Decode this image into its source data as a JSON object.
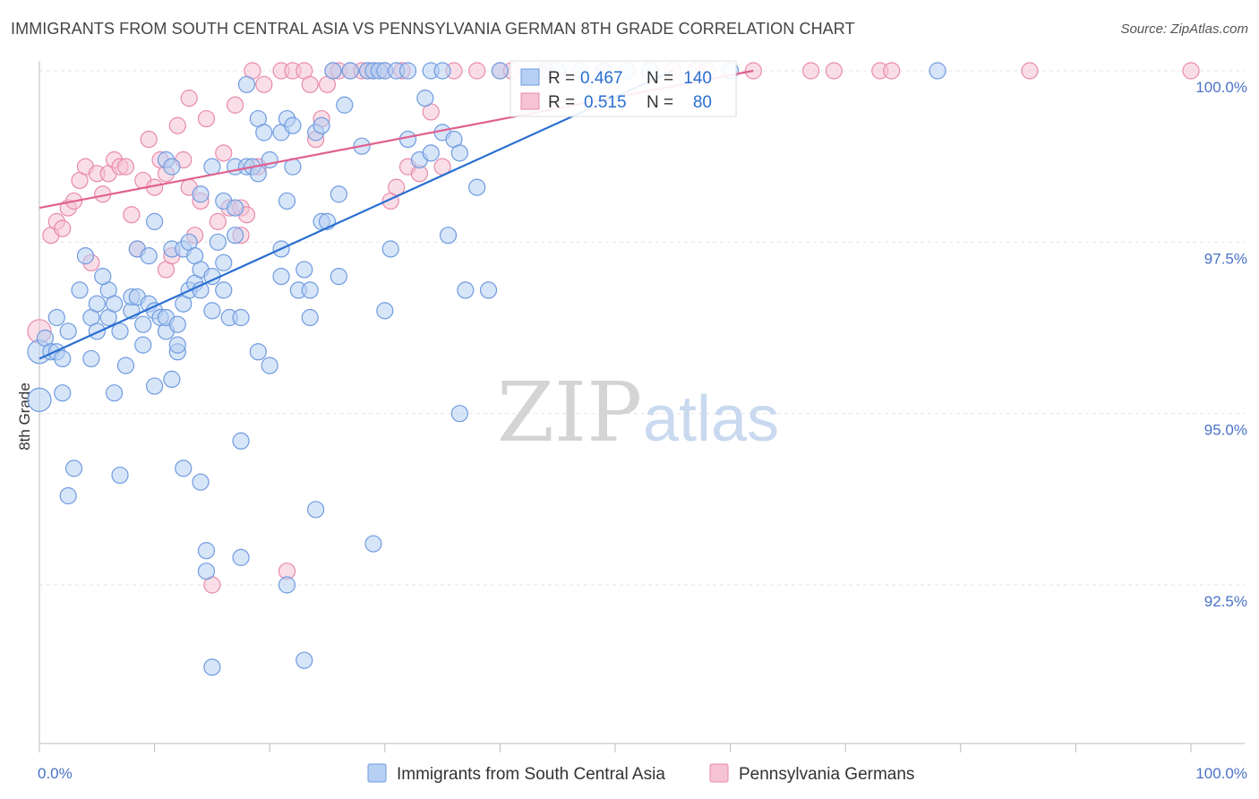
{
  "title": "IMMIGRANTS FROM SOUTH CENTRAL ASIA VS PENNSYLVANIA GERMAN 8TH GRADE CORRELATION CHART",
  "source": "Source: ZipAtlas.com",
  "watermark": {
    "zip": "ZIP",
    "atlas": "atlas"
  },
  "colors": {
    "blue": "#6f9be0",
    "blue_fill": "#b7cff3",
    "blue_line": "#2a6fd1",
    "pink": "#e88aab",
    "pink_fill": "#f6c3d4",
    "pink_line": "#e0608f",
    "tick": "#4a72c6"
  },
  "legend": {
    "r_label": "R =",
    "n_label": "N =",
    "blue": {
      "r": "0.467",
      "n": "140"
    },
    "pink": {
      "r": "0.515",
      "n": "80"
    }
  },
  "chart_data": {
    "type": "scatter",
    "title": "IMMIGRANTS FROM SOUTH CENTRAL ASIA VS PENNSYLVANIA GERMAN 8TH GRADE CORRELATION CHART",
    "xlabel": "",
    "ylabel": "8th Grade",
    "xlim": [
      0,
      100
    ],
    "ylim": [
      90.0,
      100.2
    ],
    "x_tick_labels": {
      "left": "0.0%",
      "right": "100.0%"
    },
    "y_ticks": [
      {
        "value": 100.0,
        "label": "100.0%"
      },
      {
        "value": 97.5,
        "label": "97.5%"
      },
      {
        "value": 95.0,
        "label": "95.0%"
      },
      {
        "value": 92.5,
        "label": "92.5%"
      }
    ],
    "series": [
      {
        "name": "Immigrants from South Central Asia",
        "color": "#6f9be0",
        "trend": {
          "x0": 0,
          "y0": 95.8,
          "x1": 55,
          "y1": 100.0
        },
        "points": [
          [
            0,
            95.2
          ],
          [
            0,
            95.9
          ],
          [
            0.5,
            96.1
          ],
          [
            1,
            95.9
          ],
          [
            1.5,
            95.9
          ],
          [
            2,
            95.8
          ],
          [
            2,
            95.3
          ],
          [
            1.5,
            96.4
          ],
          [
            2.5,
            96.2
          ],
          [
            3,
            94.2
          ],
          [
            2.5,
            93.8
          ],
          [
            3.5,
            96.8
          ],
          [
            4,
            97.3
          ],
          [
            4.5,
            96.4
          ],
          [
            5,
            96.2
          ],
          [
            4.5,
            95.8
          ],
          [
            5,
            96.6
          ],
          [
            6,
            96.8
          ],
          [
            5.5,
            97.0
          ],
          [
            6,
            96.4
          ],
          [
            6.5,
            96.6
          ],
          [
            7,
            96.2
          ],
          [
            6.5,
            95.3
          ],
          [
            7,
            94.1
          ],
          [
            7.5,
            95.7
          ],
          [
            8,
            96.5
          ],
          [
            8,
            96.7
          ],
          [
            8.5,
            96.7
          ],
          [
            9,
            96.0
          ],
          [
            9,
            96.3
          ],
          [
            8.5,
            97.4
          ],
          [
            9.5,
            97.3
          ],
          [
            9.5,
            96.6
          ],
          [
            10,
            97.8
          ],
          [
            10,
            96.5
          ],
          [
            10,
            95.4
          ],
          [
            10.5,
            96.4
          ],
          [
            11,
            96.2
          ],
          [
            11,
            96.4
          ],
          [
            11.5,
            97.4
          ],
          [
            11.5,
            95.5
          ],
          [
            11,
            98.7
          ],
          [
            11.5,
            98.6
          ],
          [
            12,
            96.3
          ],
          [
            12,
            95.9
          ],
          [
            12,
            96.0
          ],
          [
            12.5,
            96.6
          ],
          [
            12.5,
            97.4
          ],
          [
            13,
            97.5
          ],
          [
            13,
            96.8
          ],
          [
            12.5,
            94.2
          ],
          [
            13.5,
            96.9
          ],
          [
            13.5,
            97.3
          ],
          [
            14,
            97.1
          ],
          [
            14,
            98.2
          ],
          [
            14,
            96.8
          ],
          [
            14.5,
            93.0
          ],
          [
            14.5,
            92.7
          ],
          [
            14,
            94.0
          ],
          [
            15,
            97.0
          ],
          [
            15,
            98.6
          ],
          [
            15,
            96.5
          ],
          [
            15,
            91.3
          ],
          [
            15.5,
            97.5
          ],
          [
            16,
            98.1
          ],
          [
            16,
            97.2
          ],
          [
            16,
            96.8
          ],
          [
            16.5,
            96.4
          ],
          [
            17,
            98.6
          ],
          [
            17,
            98.0
          ],
          [
            17,
            97.6
          ],
          [
            17.5,
            94.6
          ],
          [
            17.5,
            96.4
          ],
          [
            17.5,
            92.9
          ],
          [
            18,
            99.8
          ],
          [
            18,
            98.6
          ],
          [
            18.5,
            98.6
          ],
          [
            19,
            95.9
          ],
          [
            19,
            99.3
          ],
          [
            19,
            98.5
          ],
          [
            19.5,
            99.1
          ],
          [
            20,
            98.7
          ],
          [
            20,
            95.7
          ],
          [
            21,
            99.1
          ],
          [
            21,
            97.0
          ],
          [
            21,
            97.4
          ],
          [
            21.5,
            99.3
          ],
          [
            21.5,
            98.1
          ],
          [
            21.5,
            92.5
          ],
          [
            22,
            99.2
          ],
          [
            22,
            98.6
          ],
          [
            22.5,
            96.8
          ],
          [
            23,
            91.4
          ],
          [
            23,
            97.1
          ],
          [
            23.5,
            96.8
          ],
          [
            23.5,
            96.4
          ],
          [
            24,
            99.1
          ],
          [
            24,
            93.6
          ],
          [
            24.5,
            99.2
          ],
          [
            24.5,
            97.8
          ],
          [
            25,
            97.8
          ],
          [
            25.5,
            100.0
          ],
          [
            26,
            98.2
          ],
          [
            26,
            97.0
          ],
          [
            26.5,
            99.5
          ],
          [
            27,
            100.0
          ],
          [
            28,
            98.9
          ],
          [
            28.5,
            100.0
          ],
          [
            29,
            93.1
          ],
          [
            29,
            100.0
          ],
          [
            29.5,
            100.0
          ],
          [
            30,
            96.5
          ],
          [
            30,
            100.0
          ],
          [
            30.5,
            97.4
          ],
          [
            31,
            100.0
          ],
          [
            32,
            99.0
          ],
          [
            32,
            100.0
          ],
          [
            33,
            98.7
          ],
          [
            33.5,
            99.6
          ],
          [
            34,
            98.8
          ],
          [
            34,
            100.0
          ],
          [
            35,
            100.0
          ],
          [
            35,
            99.1
          ],
          [
            35.5,
            97.6
          ],
          [
            36,
            99.0
          ],
          [
            36.5,
            95.0
          ],
          [
            36.5,
            98.8
          ],
          [
            37,
            96.8
          ],
          [
            38,
            98.3
          ],
          [
            39,
            96.8
          ],
          [
            40,
            100.0
          ],
          [
            44,
            100.0
          ],
          [
            45,
            100.0
          ],
          [
            47,
            100.0
          ],
          [
            49,
            100.0
          ],
          [
            51,
            100.0
          ],
          [
            53,
            100.0
          ],
          [
            60,
            100.0
          ],
          [
            78,
            100.0
          ]
        ]
      },
      {
        "name": "Pennsylvania Germans",
        "color": "#e88aab",
        "trend": {
          "x0": 0,
          "y0": 98.0,
          "x1": 62,
          "y1": 100.0
        },
        "points": [
          [
            0,
            96.2
          ],
          [
            1,
            97.6
          ],
          [
            1.5,
            97.8
          ],
          [
            2,
            97.7
          ],
          [
            2.5,
            98.0
          ],
          [
            3,
            98.1
          ],
          [
            3.5,
            98.4
          ],
          [
            4,
            98.6
          ],
          [
            4.5,
            97.2
          ],
          [
            5,
            98.5
          ],
          [
            5.5,
            98.2
          ],
          [
            6,
            98.5
          ],
          [
            6.5,
            98.7
          ],
          [
            7,
            98.6
          ],
          [
            7.5,
            98.6
          ],
          [
            8,
            97.9
          ],
          [
            8.5,
            97.4
          ],
          [
            9,
            98.4
          ],
          [
            9.5,
            99.0
          ],
          [
            10,
            98.3
          ],
          [
            10.5,
            98.7
          ],
          [
            11,
            98.5
          ],
          [
            11,
            97.1
          ],
          [
            11.5,
            97.3
          ],
          [
            12,
            99.2
          ],
          [
            12.5,
            98.7
          ],
          [
            13,
            98.3
          ],
          [
            13,
            99.6
          ],
          [
            13.5,
            97.6
          ],
          [
            14,
            98.1
          ],
          [
            14.5,
            99.3
          ],
          [
            15,
            92.5
          ],
          [
            15.5,
            97.8
          ],
          [
            16,
            98.8
          ],
          [
            16.5,
            98.0
          ],
          [
            17,
            99.5
          ],
          [
            17.5,
            97.6
          ],
          [
            17.5,
            98.0
          ],
          [
            18,
            97.9
          ],
          [
            18.5,
            100.0
          ],
          [
            19,
            98.6
          ],
          [
            19.5,
            99.8
          ],
          [
            21,
            100.0
          ],
          [
            21.5,
            92.7
          ],
          [
            22,
            100.0
          ],
          [
            23,
            100.0
          ],
          [
            23.5,
            99.8
          ],
          [
            24,
            99.0
          ],
          [
            24.5,
            99.3
          ],
          [
            25,
            99.8
          ],
          [
            25.5,
            100.0
          ],
          [
            26,
            100.0
          ],
          [
            27,
            100.0
          ],
          [
            28,
            100.0
          ],
          [
            28.5,
            100.0
          ],
          [
            29,
            100.0
          ],
          [
            30,
            100.0
          ],
          [
            30.5,
            98.1
          ],
          [
            31,
            98.3
          ],
          [
            31.5,
            100.0
          ],
          [
            32,
            98.6
          ],
          [
            33,
            98.5
          ],
          [
            34,
            99.4
          ],
          [
            35,
            98.6
          ],
          [
            36,
            100.0
          ],
          [
            38,
            100.0
          ],
          [
            40,
            100.0
          ],
          [
            41,
            100.0
          ],
          [
            44,
            100.0
          ],
          [
            49,
            100.0
          ],
          [
            55,
            100.0
          ],
          [
            57,
            100.0
          ],
          [
            58,
            100.0
          ],
          [
            62,
            100.0
          ],
          [
            67,
            100.0
          ],
          [
            69,
            100.0
          ],
          [
            73,
            100.0
          ],
          [
            74,
            100.0
          ],
          [
            86,
            100.0
          ],
          [
            100,
            100.0
          ]
        ]
      }
    ]
  }
}
